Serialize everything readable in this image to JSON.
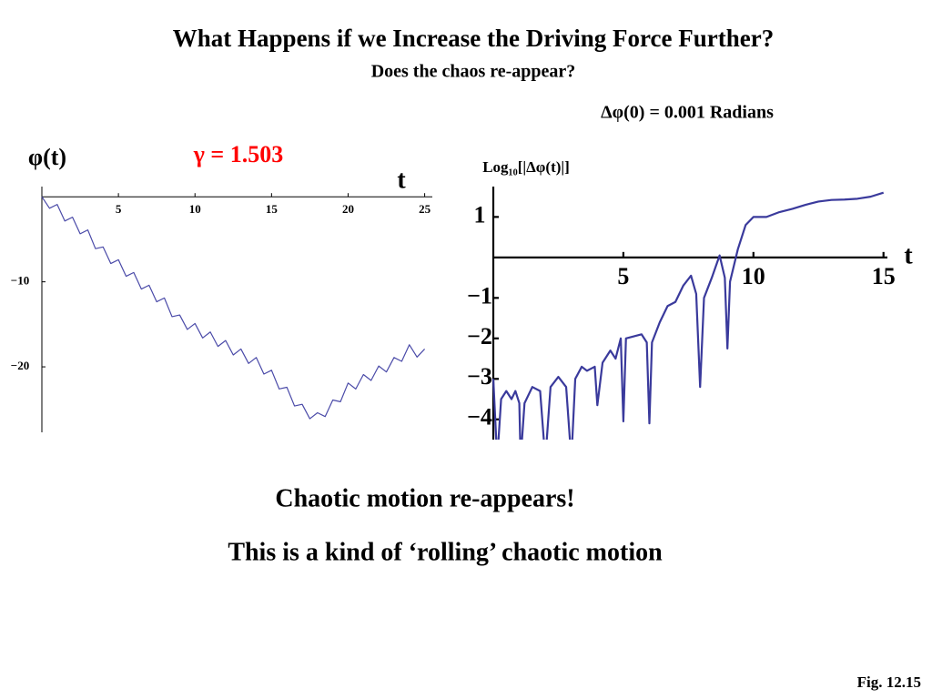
{
  "slide": {
    "title": "What Happens if we Increase the Driving Force Further?",
    "subtitle": "Does the chaos re-appear?",
    "caption": "Chaotic motion re-appears!",
    "note": "This is a kind of ‘rolling’ chaotic motion",
    "figure": "Fig. 12.15"
  },
  "chart_data": [
    {
      "type": "line",
      "ylabel": "φ(t)",
      "xlabel": "t",
      "annotation": "γ = 1.503",
      "annotation_color": "#ff0000",
      "x": [
        0,
        0.5,
        1,
        1.5,
        2,
        2.5,
        3,
        3.5,
        4,
        4.5,
        5,
        5.5,
        6,
        6.5,
        7,
        7.5,
        8,
        8.5,
        9,
        9.5,
        10,
        10.5,
        11,
        11.5,
        12,
        12.5,
        13,
        13.5,
        14,
        14.5,
        15,
        15.5,
        16,
        16.5,
        17,
        17.5,
        18,
        18.5,
        19,
        19.5,
        20,
        20.5,
        21,
        21.5,
        22,
        22.5,
        23,
        23.5,
        24,
        24.5,
        25
      ],
      "series": [
        {
          "color": "#4a4aa8",
          "values": [
            0,
            -1.35,
            -0.9,
            -2.85,
            -2.4,
            -4.35,
            -3.9,
            -6.1,
            -5.9,
            -7.85,
            -7.4,
            -9.35,
            -8.9,
            -10.85,
            -10.4,
            -12.35,
            -11.9,
            -14.1,
            -13.9,
            -15.6,
            -14.9,
            -16.6,
            -15.9,
            -17.6,
            -16.9,
            -18.6,
            -17.9,
            -19.6,
            -18.9,
            -20.85,
            -20.4,
            -22.6,
            -22.4,
            -24.6,
            -24.4,
            -26.1,
            -25.4,
            -25.85,
            -23.9,
            -24.1,
            -21.9,
            -22.6,
            -20.9,
            -21.6,
            -19.9,
            -20.6,
            -18.9,
            -19.35,
            -17.4,
            -18.85,
            -17.9
          ]
        }
      ],
      "xlim": [
        0,
        25.5
      ],
      "ylim": [
        -27.7,
        1.2
      ],
      "xticks": [
        5,
        10,
        15,
        20,
        25
      ],
      "yticks": [
        {
          "value": -10,
          "label": "−10"
        },
        {
          "value": -20,
          "label": "−20"
        }
      ]
    },
    {
      "type": "line",
      "ylabel": "Log₁₀[|Δφ(t)|]",
      "xlabel": "t",
      "annotation": "Δφ(0) = 0.001 Radians",
      "annotation_color": "#000000",
      "x": [
        0,
        0.15,
        0.3,
        0.5,
        0.7,
        0.85,
        1.0,
        1.05,
        1.2,
        1.5,
        1.8,
        2.0,
        2.2,
        2.5,
        2.8,
        3.0,
        3.15,
        3.4,
        3.6,
        3.9,
        4.0,
        4.2,
        4.5,
        4.7,
        4.9,
        5.0,
        5.1,
        5.4,
        5.7,
        5.9,
        6.0,
        6.1,
        6.4,
        6.7,
        7.0,
        7.3,
        7.6,
        7.8,
        7.95,
        8.1,
        8.4,
        8.7,
        8.9,
        9.0,
        9.1,
        9.4,
        9.7,
        10.0,
        10.5,
        11,
        11.5,
        12,
        12.5,
        13,
        13.5,
        14,
        14.5,
        15
      ],
      "series": [
        {
          "color": "#3a3a9c",
          "values": [
            -3.0,
            -5.0,
            -3.5,
            -3.3,
            -3.5,
            -3.3,
            -3.6,
            -5.0,
            -3.6,
            -3.2,
            -3.3,
            -5.0,
            -3.2,
            -2.95,
            -3.2,
            -5.0,
            -3.0,
            -2.7,
            -2.8,
            -2.7,
            -3.65,
            -2.6,
            -2.3,
            -2.5,
            -2.0,
            -4.05,
            -2.0,
            -1.95,
            -1.9,
            -2.1,
            -4.1,
            -2.1,
            -1.6,
            -1.2,
            -1.1,
            -0.7,
            -0.45,
            -0.9,
            -3.2,
            -1.0,
            -0.5,
            0.05,
            -0.5,
            -2.25,
            -0.6,
            0.2,
            0.8,
            1.0,
            1.0,
            1.12,
            1.2,
            1.3,
            1.38,
            1.42,
            1.43,
            1.45,
            1.5,
            1.6
          ]
        }
      ],
      "xlim": [
        0,
        15.15
      ],
      "ylim": [
        -4.5,
        1.75
      ],
      "xticks": [
        5,
        10,
        15
      ],
      "yticks": [
        1,
        {
          "value": -1,
          "label": "−1"
        },
        {
          "value": -2,
          "label": "−2"
        },
        {
          "value": -3,
          "label": "−3"
        },
        {
          "value": -4,
          "label": "−4"
        }
      ]
    }
  ]
}
